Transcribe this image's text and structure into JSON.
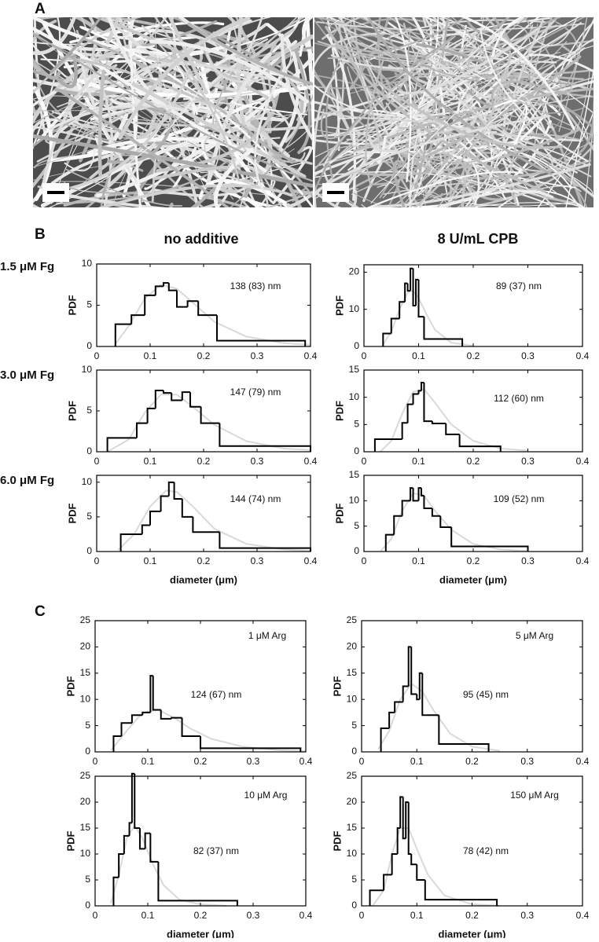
{
  "figure": {
    "panel_labels": [
      "A",
      "B",
      "C"
    ],
    "column_headers": [
      "no additive",
      "8 U/mL CPB"
    ],
    "row_labels": [
      "1.5 μM Fg",
      "3.0 μM Fg",
      "6.0 μM Fg"
    ]
  },
  "chart_data": [
    {
      "type": "histogram",
      "ylabel": "PDF",
      "annotations": [
        "138 (83) nm"
      ],
      "color": "#000000",
      "bins": [
        0.035,
        0.065,
        0.09,
        0.11,
        0.125,
        0.135,
        0.15,
        0.17,
        0.19,
        0.225,
        0.39
      ],
      "values": [
        2.7,
        3.8,
        6.2,
        7.3,
        7.7,
        6.8,
        4.8,
        5.5,
        3.8,
        0.7
      ],
      "fit": {
        "color": "#d9d9d9",
        "x": [
          0.035,
          0.06,
          0.09,
          0.12,
          0.15,
          0.18,
          0.22,
          0.28,
          0.35,
          0.4
        ],
        "values": [
          0.3,
          2.5,
          5.8,
          7.5,
          7,
          5.3,
          3,
          1.2,
          0.4,
          0.2
        ]
      },
      "xlim": [
        0,
        0.4
      ],
      "xticks": [
        0,
        0.1,
        0.2,
        0.3,
        0.4
      ],
      "ylim": [
        0,
        10
      ],
      "yticks": [
        0,
        5,
        10
      ]
    },
    {
      "type": "histogram",
      "ylabel": "PDF",
      "annotations": [
        "89 (37) nm"
      ],
      "color": "#000000",
      "bins": [
        0.035,
        0.05,
        0.065,
        0.075,
        0.08,
        0.085,
        0.09,
        0.095,
        0.1,
        0.11,
        0.18
      ],
      "values": [
        3.5,
        7.5,
        12,
        17,
        15,
        21,
        11,
        18,
        8,
        2
      ],
      "fit": {
        "color": "#d9d9d9",
        "x": [
          0.035,
          0.05,
          0.065,
          0.08,
          0.09,
          0.1,
          0.115,
          0.13,
          0.16,
          0.2
        ],
        "values": [
          0.5,
          4,
          10,
          14.5,
          15,
          13,
          8.5,
          4.5,
          1,
          0.2
        ]
      },
      "xlim": [
        0,
        0.4
      ],
      "xticks": [
        0,
        0.1,
        0.2,
        0.3,
        0.4
      ],
      "ylim": [
        0,
        22
      ],
      "yticks": [
        0,
        10,
        20
      ]
    },
    {
      "type": "histogram",
      "ylabel": "PDF",
      "annotations": [
        "147 (79) nm"
      ],
      "color": "#000000",
      "bins": [
        0.02,
        0.075,
        0.095,
        0.11,
        0.125,
        0.14,
        0.16,
        0.175,
        0.195,
        0.23,
        0.4
      ],
      "values": [
        1.7,
        3.5,
        5.3,
        7.5,
        7.2,
        6.3,
        7.3,
        5.5,
        3.5,
        0.7
      ],
      "fit": {
        "color": "#d9d9d9",
        "x": [
          0.02,
          0.06,
          0.09,
          0.12,
          0.15,
          0.18,
          0.22,
          0.28,
          0.35,
          0.4
        ],
        "values": [
          0,
          1.5,
          4.8,
          7,
          7,
          5.5,
          3.3,
          1.3,
          0.4,
          0.2
        ]
      },
      "xlim": [
        0,
        0.4
      ],
      "xticks": [
        0,
        0.1,
        0.2,
        0.3,
        0.4
      ],
      "ylim": [
        0,
        10
      ],
      "yticks": [
        0,
        5,
        10
      ]
    },
    {
      "type": "histogram",
      "ylabel": "PDF",
      "annotations": [
        "112 (60) nm"
      ],
      "color": "#000000",
      "bins": [
        0.02,
        0.07,
        0.08,
        0.09,
        0.1,
        0.105,
        0.11,
        0.125,
        0.15,
        0.175,
        0.25
      ],
      "values": [
        2.3,
        5.3,
        8.7,
        10.6,
        11.2,
        12.7,
        5.6,
        5.2,
        3.2,
        1
      ],
      "fit": {
        "color": "#d9d9d9",
        "x": [
          0.03,
          0.05,
          0.07,
          0.09,
          0.11,
          0.13,
          0.16,
          0.2,
          0.25,
          0.3
        ],
        "values": [
          0,
          2,
          7,
          11,
          11.5,
          9,
          5,
          2,
          0.6,
          0.2
        ]
      },
      "xlim": [
        0,
        0.4
      ],
      "xticks": [
        0,
        0.1,
        0.2,
        0.3,
        0.4
      ],
      "ylim": [
        0,
        15
      ],
      "yticks": [
        0,
        5,
        10,
        15
      ]
    },
    {
      "type": "histogram",
      "ylabel": "PDF",
      "xlabel": "diameter (μm)",
      "annotations": [
        "144 (74) nm"
      ],
      "color": "#000000",
      "bins": [
        0.045,
        0.085,
        0.1,
        0.12,
        0.135,
        0.145,
        0.16,
        0.18,
        0.23,
        0.4
      ],
      "values": [
        2.5,
        3.8,
        5.8,
        8,
        10,
        7.6,
        5,
        2.8,
        0.5
      ],
      "fit": {
        "color": "#d9d9d9",
        "x": [
          0.04,
          0.07,
          0.1,
          0.13,
          0.15,
          0.18,
          0.22,
          0.28,
          0.35,
          0.4
        ],
        "values": [
          0.2,
          2.5,
          6.5,
          8.8,
          8.6,
          6.5,
          3.3,
          1.1,
          0.3,
          0.1
        ]
      },
      "xlim": [
        0,
        0.4
      ],
      "xticks": [
        0,
        0.1,
        0.2,
        0.3,
        0.4
      ],
      "ylim": [
        0,
        11
      ],
      "yticks": [
        0,
        5,
        10
      ]
    },
    {
      "type": "histogram",
      "ylabel": "PDF",
      "xlabel": "diameter (μm)",
      "annotations": [
        "109 (52) nm"
      ],
      "color": "#000000",
      "bins": [
        0.04,
        0.055,
        0.07,
        0.085,
        0.09,
        0.1,
        0.105,
        0.11,
        0.125,
        0.14,
        0.16,
        0.3
      ],
      "values": [
        3.3,
        7,
        10,
        12.5,
        10,
        12.5,
        11,
        8.5,
        7,
        4.8,
        1
      ],
      "fit": {
        "color": "#d9d9d9",
        "x": [
          0.03,
          0.05,
          0.07,
          0.09,
          0.11,
          0.13,
          0.16,
          0.2,
          0.25,
          0.3
        ],
        "values": [
          0,
          2.5,
          8,
          11.5,
          11,
          8,
          4.3,
          1.5,
          0.4,
          0.1
        ]
      },
      "xlim": [
        0,
        0.4
      ],
      "xticks": [
        0,
        0.1,
        0.2,
        0.3,
        0.4
      ],
      "ylim": [
        0,
        15
      ],
      "yticks": [
        0,
        5,
        10,
        15
      ]
    },
    {
      "type": "histogram",
      "ylabel": "PDF",
      "annotations": [
        "1 μM Arg",
        "124 (67) nm"
      ],
      "color": "#000000",
      "bins": [
        0.035,
        0.05,
        0.07,
        0.09,
        0.105,
        0.11,
        0.125,
        0.145,
        0.165,
        0.2,
        0.39
      ],
      "values": [
        3,
        5.5,
        7,
        7.5,
        14.5,
        8,
        6.3,
        6.5,
        3,
        0.7
      ],
      "fit": {
        "color": "#d9d9d9",
        "x": [
          0.03,
          0.06,
          0.09,
          0.12,
          0.15,
          0.18,
          0.22,
          0.28,
          0.35,
          0.4
        ],
        "values": [
          0.3,
          4,
          7.5,
          8,
          6.5,
          4.5,
          2.5,
          1,
          0.3,
          0.1
        ]
      },
      "xlim": [
        0,
        0.4
      ],
      "xticks": [
        0,
        0.1,
        0.2,
        0.3,
        0.4
      ],
      "ylim": [
        0,
        25
      ],
      "yticks": [
        0,
        5,
        10,
        15,
        20,
        25
      ]
    },
    {
      "type": "histogram",
      "ylabel": "PDF",
      "annotations": [
        "5 μM Arg",
        "95 (45) nm"
      ],
      "color": "#000000",
      "bins": [
        0.035,
        0.05,
        0.06,
        0.075,
        0.085,
        0.09,
        0.1,
        0.105,
        0.11,
        0.14,
        0.23
      ],
      "values": [
        4.5,
        7.5,
        9.5,
        12.5,
        20,
        11,
        10,
        15,
        7,
        1.5
      ],
      "fit": {
        "color": "#d9d9d9",
        "x": [
          0.03,
          0.05,
          0.07,
          0.09,
          0.11,
          0.13,
          0.16,
          0.2,
          0.25
        ],
        "values": [
          0.5,
          4,
          10,
          13,
          11.5,
          8,
          3.5,
          1,
          0.2
        ]
      },
      "xlim": [
        0,
        0.4
      ],
      "xticks": [
        0,
        0.1,
        0.2,
        0.3,
        0.4
      ],
      "ylim": [
        0,
        25
      ],
      "yticks": [
        0,
        5,
        10,
        15,
        20,
        25
      ]
    },
    {
      "type": "histogram",
      "ylabel": "PDF",
      "xlabel": "diameter (μm)",
      "annotations": [
        "10 μM Arg",
        "82 (37) nm"
      ],
      "color": "#000000",
      "bins": [
        0.035,
        0.045,
        0.055,
        0.065,
        0.07,
        0.075,
        0.085,
        0.095,
        0.105,
        0.12,
        0.27
      ],
      "values": [
        5.5,
        10,
        13.5,
        16,
        25.5,
        15,
        11,
        14,
        8.5,
        1
      ],
      "fit": {
        "color": "#d9d9d9",
        "x": [
          0.03,
          0.045,
          0.06,
          0.075,
          0.09,
          0.11,
          0.13,
          0.16,
          0.2,
          0.25
        ],
        "values": [
          0.5,
          6,
          13,
          15.5,
          13,
          8,
          4,
          1.2,
          0.3,
          0
        ]
      },
      "xlim": [
        0,
        0.4
      ],
      "xticks": [
        0,
        0.1,
        0.2,
        0.3,
        0.4
      ],
      "ylim": [
        0,
        25
      ],
      "yticks": [
        0,
        5,
        10,
        15,
        20,
        25
      ]
    },
    {
      "type": "histogram",
      "ylabel": "PDF",
      "xlabel": "diameter (μm)",
      "annotations": [
        "150 μM Arg",
        "78 (42) nm"
      ],
      "color": "#000000",
      "bins": [
        0.015,
        0.04,
        0.055,
        0.065,
        0.07,
        0.075,
        0.08,
        0.085,
        0.09,
        0.1,
        0.115,
        0.245
      ],
      "values": [
        3,
        6,
        10,
        15,
        21,
        13,
        20,
        10,
        8,
        5,
        1.2
      ],
      "fit": {
        "color": "#d9d9d9",
        "x": [
          0.02,
          0.04,
          0.055,
          0.07,
          0.085,
          0.1,
          0.12,
          0.15,
          0.2,
          0.25
        ],
        "values": [
          0,
          3,
          10,
          15,
          15,
          11,
          6,
          2,
          0.3,
          0
        ]
      },
      "xlim": [
        0,
        0.4
      ],
      "xticks": [
        0,
        0.1,
        0.2,
        0.3,
        0.4
      ],
      "ylim": [
        0,
        25
      ],
      "yticks": [
        0,
        5,
        10,
        15,
        20,
        25
      ]
    }
  ]
}
